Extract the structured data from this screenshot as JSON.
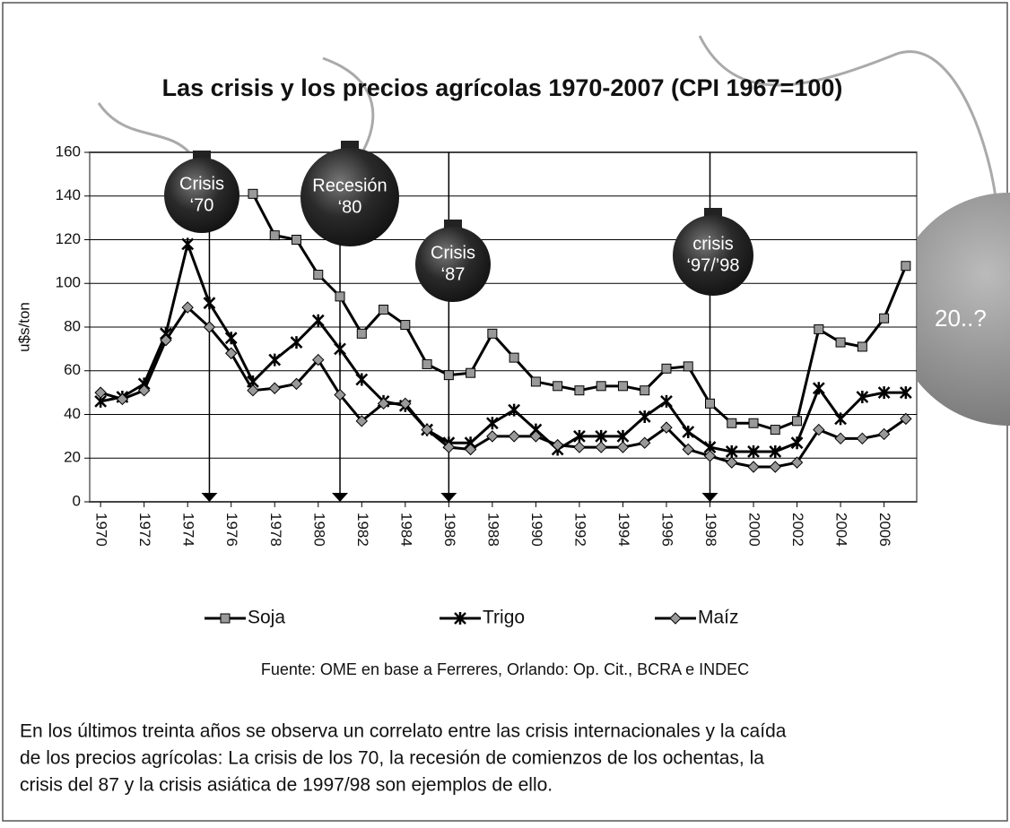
{
  "chart_data": {
    "type": "line",
    "title": "Las crisis y los precios agrícolas 1970-2007 (CPI 1967=100)",
    "y_label": "u$s/ton",
    "x": [
      1970,
      1971,
      1972,
      1973,
      1974,
      1975,
      1976,
      1977,
      1978,
      1979,
      1980,
      1981,
      1982,
      1983,
      1984,
      1985,
      1986,
      1987,
      1988,
      1989,
      1990,
      1991,
      1992,
      1993,
      1994,
      1995,
      1996,
      1997,
      1998,
      1999,
      2000,
      2001,
      2002,
      2003,
      2004,
      2005,
      2006,
      2007
    ],
    "xlim": [
      1969.5,
      2007.5
    ],
    "xticks": [
      1970,
      1972,
      1974,
      1976,
      1978,
      1980,
      1982,
      1984,
      1986,
      1988,
      1990,
      1992,
      1994,
      1996,
      1998,
      2000,
      2002,
      2004,
      2006
    ],
    "ylim": [
      0,
      160
    ],
    "yticks": [
      0,
      20,
      40,
      60,
      80,
      100,
      120,
      140,
      160
    ],
    "grid": true,
    "series": [
      {
        "name": "Soja",
        "color": "#000000",
        "marker": "square",
        "marker_color": "#999999",
        "values": [
          null,
          null,
          null,
          null,
          null,
          null,
          null,
          141,
          122,
          120,
          104,
          94,
          77,
          88,
          81,
          63,
          58,
          59,
          77,
          66,
          55,
          53,
          51,
          53,
          53,
          51,
          61,
          62,
          45,
          36,
          36,
          33,
          37,
          79,
          73,
          71,
          84,
          108
        ]
      },
      {
        "name": "Trigo",
        "color": "#000000",
        "marker": "x",
        "marker_color": "#000000",
        "values": [
          46,
          48,
          54,
          77,
          118,
          91,
          75,
          55,
          65,
          73,
          83,
          70,
          56,
          46,
          44,
          33,
          27,
          27,
          36,
          42,
          33,
          24,
          30,
          30,
          30,
          39,
          46,
          32,
          25,
          23,
          23,
          23,
          27,
          52,
          38,
          48,
          50,
          50
        ]
      },
      {
        "name": "Maíz",
        "color": "#000000",
        "marker": "diamond",
        "marker_color": "#999999",
        "values": [
          50,
          47,
          51,
          74,
          89,
          80,
          68,
          51,
          52,
          54,
          65,
          49,
          37,
          45,
          45,
          33,
          25,
          24,
          30,
          30,
          30,
          26,
          25,
          25,
          25,
          27,
          34,
          24,
          21,
          18,
          16,
          16,
          18,
          33,
          29,
          29,
          31,
          38
        ]
      }
    ],
    "annotations": [
      {
        "x": 1975,
        "lines": [
          "Crisis",
          "‘70"
        ]
      },
      {
        "x": 1981,
        "lines": [
          "Recesión",
          "‘80"
        ]
      },
      {
        "x": 1986,
        "lines": [
          "Crisis",
          "‘87"
        ]
      },
      {
        "x": 1998,
        "lines": [
          "crisis",
          "‘97/’98"
        ]
      }
    ],
    "future_label": "20..?",
    "source": "Fuente: OME en base a Ferreres, Orlando: Op. Cit., BCRA e INDEC",
    "note_lines": [
      "En los últimos treinta años se observa un correlato entre las crisis internacionales y la caída",
      "de los precios agrícolas: La crisis de los 70, la recesión de comienzos de los ochentas, la",
      "crisis del 87 y la crisis asiática de 1997/98 son ejemplos de ello."
    ]
  }
}
